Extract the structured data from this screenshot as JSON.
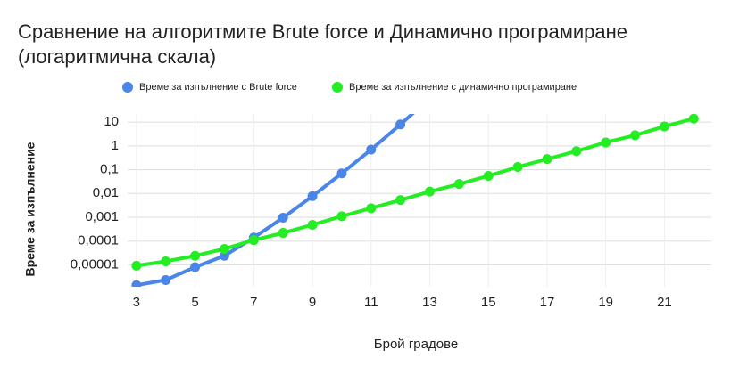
{
  "chart_data": {
    "type": "line",
    "title": "Сравнение на алгоритмите Brute force и Динамично програмиране (логаритмична скала)",
    "x_label": "Брой градове",
    "y_label": "Време за изпълнение",
    "x": [
      3,
      4,
      5,
      6,
      7,
      8,
      9,
      10,
      11,
      12,
      13,
      14,
      15,
      16,
      17,
      18,
      19,
      20,
      21,
      22
    ],
    "series": [
      {
        "name": "Време за изпълнение с Brute force",
        "color": "#4a86e8",
        "values": [
          1.4e-06,
          2.3e-06,
          8e-06,
          2.4e-05,
          0.00014,
          0.00096,
          0.0077,
          0.07,
          0.7,
          8,
          100,
          null,
          null,
          null,
          null,
          null,
          null,
          null,
          null,
          null
        ]
      },
      {
        "name": "Време за изпълнение с динамично програмиране",
        "color": "#22ee22",
        "values": [
          9.2e-06,
          1.4e-05,
          2.4e-05,
          4.7e-05,
          0.00011,
          0.00022,
          0.00048,
          0.0011,
          0.0024,
          0.0053,
          0.012,
          0.025,
          0.055,
          0.13,
          0.28,
          0.6,
          1.4,
          2.8,
          6.6,
          14
        ]
      }
    ],
    "xlim": [
      2.7,
      22.6
    ],
    "xticks": [
      3,
      5,
      7,
      9,
      11,
      13,
      15,
      17,
      19,
      21
    ],
    "ylim": [
      1.2e-06,
      22
    ],
    "log_y": true,
    "grid": true,
    "legend": "top",
    "yticks": [
      {
        "value": 1e-05,
        "label": "0,00001"
      },
      {
        "value": 0.0001,
        "label": "0,0001"
      },
      {
        "value": 0.001,
        "label": "0,001"
      },
      {
        "value": 0.01,
        "label": "0,01"
      },
      {
        "value": 0.1,
        "label": "0,1"
      },
      1,
      10
    ]
  }
}
